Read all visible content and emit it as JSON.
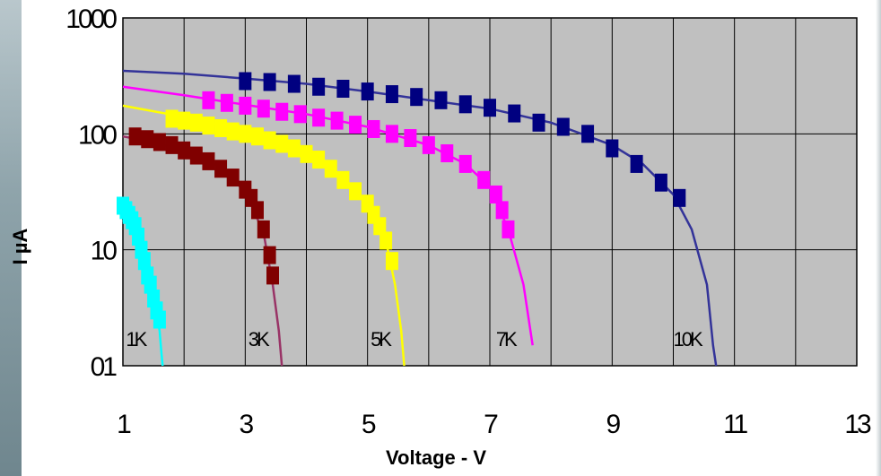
{
  "chart_data": {
    "type": "scatter",
    "xlabel": "Voltage - V",
    "ylabel": "I µA",
    "xlim": [
      1,
      13
    ],
    "ylim": [
      1,
      1000
    ],
    "y_scale": "log",
    "grid": true,
    "x_ticks": [
      "1",
      "3",
      "5",
      "7",
      "9",
      "11",
      "13"
    ],
    "y_ticks": [
      "1000",
      "100",
      "10",
      "01"
    ],
    "series": [
      {
        "name": "1K",
        "color": "#00ffff",
        "label": "1K",
        "label_at": [
          1.05,
          1.7
        ],
        "points": [
          [
            1.0,
            24
          ],
          [
            1.05,
            22
          ],
          [
            1.1,
            20
          ],
          [
            1.15,
            18
          ],
          [
            1.2,
            16
          ],
          [
            1.25,
            13
          ],
          [
            1.3,
            10
          ],
          [
            1.35,
            8
          ],
          [
            1.4,
            6
          ],
          [
            1.45,
            5
          ],
          [
            1.5,
            3.8
          ],
          [
            1.55,
            3
          ],
          [
            1.6,
            2.5
          ]
        ],
        "curve": [
          [
            1.0,
            18
          ],
          [
            1.2,
            15
          ],
          [
            1.4,
            9
          ],
          [
            1.5,
            5
          ],
          [
            1.55,
            3
          ],
          [
            1.6,
            2
          ],
          [
            1.63,
            1.3
          ],
          [
            1.65,
            1
          ]
        ]
      },
      {
        "name": "3K",
        "color": "#800000",
        "line_color": "#993366",
        "label": "3K",
        "label_at": [
          3.05,
          1.7
        ],
        "points": [
          [
            1.2,
            95
          ],
          [
            1.4,
            90
          ],
          [
            1.6,
            85
          ],
          [
            1.8,
            80
          ],
          [
            2.0,
            72
          ],
          [
            2.2,
            65
          ],
          [
            2.4,
            58
          ],
          [
            2.6,
            50
          ],
          [
            2.8,
            42
          ],
          [
            3.0,
            33
          ],
          [
            3.1,
            28
          ],
          [
            3.2,
            22
          ],
          [
            3.3,
            15
          ],
          [
            3.4,
            9
          ],
          [
            3.45,
            6
          ]
        ],
        "curve": [
          [
            1.0,
            95
          ],
          [
            1.5,
            85
          ],
          [
            2.0,
            72
          ],
          [
            2.5,
            55
          ],
          [
            3.0,
            32
          ],
          [
            3.3,
            14
          ],
          [
            3.45,
            5
          ],
          [
            3.55,
            2
          ],
          [
            3.6,
            1
          ]
        ]
      },
      {
        "name": "5K",
        "color": "#ffff00",
        "label": "5K",
        "label_at": [
          5.05,
          1.7
        ],
        "points": [
          [
            1.8,
            135
          ],
          [
            2.0,
            130
          ],
          [
            2.2,
            125
          ],
          [
            2.4,
            118
          ],
          [
            2.6,
            112
          ],
          [
            2.8,
            105
          ],
          [
            3.0,
            100
          ],
          [
            3.2,
            95
          ],
          [
            3.4,
            88
          ],
          [
            3.6,
            82
          ],
          [
            3.8,
            75
          ],
          [
            4.0,
            67
          ],
          [
            4.2,
            60
          ],
          [
            4.4,
            50
          ],
          [
            4.6,
            40
          ],
          [
            4.8,
            32
          ],
          [
            5.0,
            25
          ],
          [
            5.1,
            20
          ],
          [
            5.2,
            16
          ],
          [
            5.3,
            12
          ],
          [
            5.4,
            8
          ]
        ],
        "curve": [
          [
            1.0,
            175
          ],
          [
            2.0,
            140
          ],
          [
            3.0,
            105
          ],
          [
            4.0,
            68
          ],
          [
            4.5,
            45
          ],
          [
            5.0,
            25
          ],
          [
            5.3,
            12
          ],
          [
            5.45,
            5
          ],
          [
            5.55,
            2
          ],
          [
            5.6,
            1
          ]
        ]
      },
      {
        "name": "7K",
        "color": "#ff00ff",
        "label": "7K",
        "label_at": [
          7.1,
          1.7
        ],
        "points": [
          [
            2.4,
            195
          ],
          [
            2.7,
            185
          ],
          [
            3.0,
            175
          ],
          [
            3.3,
            165
          ],
          [
            3.6,
            155
          ],
          [
            3.9,
            148
          ],
          [
            4.2,
            138
          ],
          [
            4.5,
            130
          ],
          [
            4.8,
            120
          ],
          [
            5.1,
            110
          ],
          [
            5.4,
            100
          ],
          [
            5.7,
            92
          ],
          [
            6.0,
            80
          ],
          [
            6.3,
            68
          ],
          [
            6.6,
            55
          ],
          [
            6.9,
            40
          ],
          [
            7.1,
            30
          ],
          [
            7.2,
            22
          ],
          [
            7.3,
            15
          ]
        ],
        "curve": [
          [
            1.0,
            255
          ],
          [
            2.0,
            215
          ],
          [
            3.0,
            178
          ],
          [
            4.0,
            148
          ],
          [
            5.0,
            115
          ],
          [
            6.0,
            80
          ],
          [
            6.6,
            55
          ],
          [
            7.0,
            35
          ],
          [
            7.3,
            15
          ],
          [
            7.55,
            5
          ],
          [
            7.7,
            1.5
          ]
        ]
      },
      {
        "name": "10K",
        "color": "#000080",
        "line_color": "#333399",
        "label": "10K",
        "label_at": [
          10.0,
          1.7
        ],
        "points": [
          [
            3.0,
            285
          ],
          [
            3.4,
            280
          ],
          [
            3.8,
            270
          ],
          [
            4.2,
            255
          ],
          [
            4.6,
            245
          ],
          [
            5.0,
            232
          ],
          [
            5.4,
            220
          ],
          [
            5.8,
            208
          ],
          [
            6.2,
            195
          ],
          [
            6.6,
            180
          ],
          [
            7.0,
            168
          ],
          [
            7.4,
            150
          ],
          [
            7.8,
            125
          ],
          [
            8.2,
            115
          ],
          [
            8.6,
            100
          ],
          [
            9.0,
            75
          ],
          [
            9.4,
            55
          ],
          [
            9.8,
            38
          ],
          [
            10.1,
            28
          ]
        ],
        "curve": [
          [
            1.0,
            350
          ],
          [
            2.0,
            330
          ],
          [
            3.0,
            300
          ],
          [
            4.0,
            270
          ],
          [
            5.0,
            232
          ],
          [
            6.0,
            195
          ],
          [
            7.0,
            165
          ],
          [
            8.0,
            125
          ],
          [
            9.0,
            80
          ],
          [
            9.5,
            55
          ],
          [
            10.0,
            30
          ],
          [
            10.3,
            15
          ],
          [
            10.55,
            5
          ],
          [
            10.65,
            1.5
          ],
          [
            10.7,
            1
          ]
        ]
      }
    ]
  }
}
